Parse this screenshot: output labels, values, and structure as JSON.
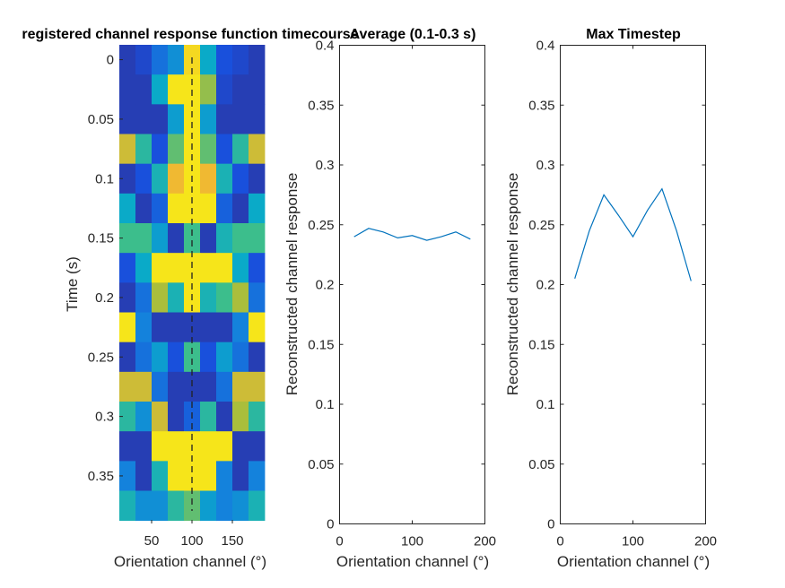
{
  "chart_data": [
    {
      "type": "heatmap",
      "title": "registered channel response function timecourse",
      "xlabel": "Orientation channel (°)",
      "ylabel": "Time (s)",
      "x_tick_labels": [
        "50",
        "100",
        "150"
      ],
      "x_ticks": [
        50,
        100,
        150
      ],
      "y_tick_labels": [
        "0",
        "0.05",
        "0.1",
        "0.15",
        "0.2",
        "0.25",
        "0.3",
        "0.35"
      ],
      "y_ticks": [
        0,
        0.05,
        0.1,
        0.15,
        0.2,
        0.25,
        0.3,
        0.35
      ],
      "xlim": [
        10,
        190
      ],
      "ylim": [
        0.39,
        -0.0125
      ],
      "x_centers": [
        20,
        40,
        60,
        80,
        100,
        120,
        140,
        160,
        180
      ],
      "y_centers": [
        0,
        0.025,
        0.05,
        0.075,
        0.1,
        0.125,
        0.15,
        0.175,
        0.2,
        0.225,
        0.25,
        0.275,
        0.3,
        0.325,
        0.35,
        0.375
      ],
      "colormap": "parula",
      "color_range": [
        0,
        1
      ],
      "values": [
        [
          0.08,
          0.12,
          0.25,
          0.35,
          0.92,
          0.45,
          0.15,
          0.12,
          0.08
        ],
        [
          0.08,
          0.08,
          0.45,
          0.95,
          0.95,
          0.72,
          0.12,
          0.08,
          0.08
        ],
        [
          0.08,
          0.08,
          0.08,
          0.4,
          0.95,
          0.4,
          0.08,
          0.08,
          0.08
        ],
        [
          0.8,
          0.55,
          0.15,
          0.65,
          0.95,
          0.65,
          0.15,
          0.55,
          0.8
        ],
        [
          0.08,
          0.15,
          0.5,
          0.85,
          0.95,
          0.85,
          0.5,
          0.15,
          0.08
        ],
        [
          0.45,
          0.08,
          0.2,
          0.95,
          0.95,
          0.95,
          0.2,
          0.08,
          0.45
        ],
        [
          0.6,
          0.6,
          0.4,
          0.08,
          0.6,
          0.08,
          0.5,
          0.6,
          0.6
        ],
        [
          0.15,
          0.45,
          0.95,
          0.95,
          0.95,
          0.95,
          0.95,
          0.45,
          0.15
        ],
        [
          0.08,
          0.25,
          0.75,
          0.5,
          0.95,
          0.5,
          0.6,
          0.75,
          0.25
        ],
        [
          0.95,
          0.3,
          0.08,
          0.08,
          0.08,
          0.08,
          0.08,
          0.3,
          0.95
        ],
        [
          0.08,
          0.25,
          0.4,
          0.15,
          0.6,
          0.15,
          0.4,
          0.25,
          0.08
        ],
        [
          0.8,
          0.8,
          0.25,
          0.08,
          0.08,
          0.08,
          0.25,
          0.8,
          0.8
        ],
        [
          0.55,
          0.35,
          0.8,
          0.08,
          0.2,
          0.55,
          0.08,
          0.75,
          0.55
        ],
        [
          0.08,
          0.08,
          0.95,
          0.95,
          0.95,
          0.95,
          0.95,
          0.08,
          0.08
        ],
        [
          0.3,
          0.08,
          0.5,
          0.95,
          0.95,
          0.95,
          0.3,
          0.08,
          0.3
        ],
        [
          0.5,
          0.35,
          0.35,
          0.55,
          0.65,
          0.4,
          0.3,
          0.35,
          0.5
        ]
      ],
      "reference_line": {
        "x": 100,
        "style": "dashed",
        "color": "#222222"
      }
    },
    {
      "type": "line",
      "title": "Average (0.1-0.3 s)",
      "xlabel": "Orientation channel (°)",
      "ylabel": "Reconstructed channel response",
      "x_ticks": [
        0,
        100,
        200
      ],
      "x_tick_labels": [
        "0",
        "100",
        "200"
      ],
      "y_ticks": [
        0,
        0.05,
        0.1,
        0.15,
        0.2,
        0.25,
        0.3,
        0.35,
        0.4
      ],
      "y_tick_labels": [
        "0",
        "0.05",
        "0.1",
        "0.15",
        "0.2",
        "0.25",
        "0.3",
        "0.35",
        "0.4"
      ],
      "xlim": [
        0,
        200
      ],
      "ylim": [
        0,
        0.4
      ],
      "x": [
        20,
        40,
        60,
        80,
        100,
        120,
        140,
        160,
        180
      ],
      "y": [
        0.24,
        0.247,
        0.244,
        0.239,
        0.241,
        0.237,
        0.24,
        0.244,
        0.238
      ],
      "color": "#0072BD"
    },
    {
      "type": "line",
      "title": "Max Timestep",
      "xlabel": "Orientation channel (°)",
      "ylabel": "Reconstructed channel response",
      "x_ticks": [
        0,
        100,
        200
      ],
      "x_tick_labels": [
        "0",
        "100",
        "200"
      ],
      "y_ticks": [
        0,
        0.05,
        0.1,
        0.15,
        0.2,
        0.25,
        0.3,
        0.35,
        0.4
      ],
      "y_tick_labels": [
        "0",
        "0.05",
        "0.1",
        "0.15",
        "0.2",
        "0.25",
        "0.3",
        "0.35",
        "0.4"
      ],
      "xlim": [
        0,
        200
      ],
      "ylim": [
        0,
        0.4
      ],
      "x": [
        20,
        40,
        60,
        80,
        100,
        120,
        140,
        160,
        180
      ],
      "y": [
        0.205,
        0.245,
        0.275,
        0.258,
        0.24,
        0.262,
        0.28,
        0.245,
        0.203
      ],
      "color": "#0072BD"
    }
  ]
}
